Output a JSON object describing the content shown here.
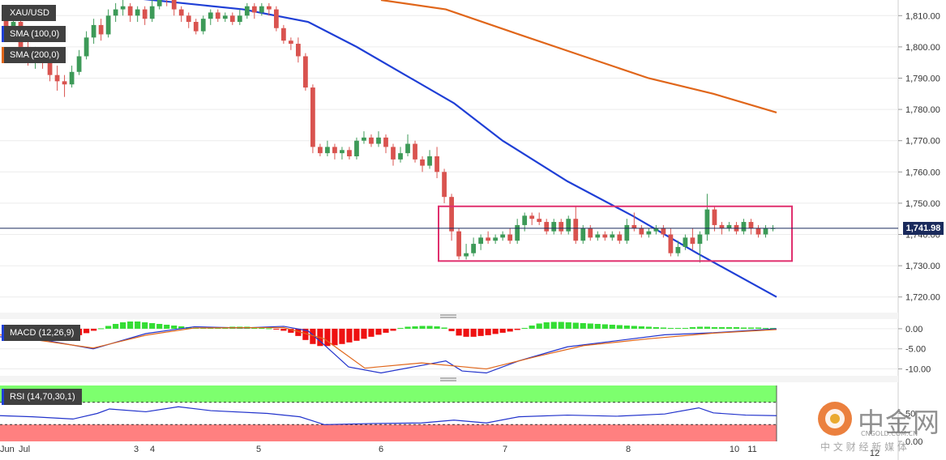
{
  "chart_data": [
    {
      "type": "candlestick",
      "symbol": "XAU/USD",
      "indicators": [
        {
          "name": "SMA (100,0)",
          "color": "#1f3fd6"
        },
        {
          "name": "SMA (200,0)",
          "color": "#e0661a"
        }
      ],
      "ylim": [
        1715,
        1815
      ],
      "yticks": [
        1720,
        1730,
        1740,
        1750,
        1760,
        1770,
        1780,
        1790,
        1800,
        1810
      ],
      "ytick_labels": [
        "1,720.00",
        "1,730.00",
        "1,740.00",
        "1,750.00",
        "1,760.00",
        "1,770.00",
        "1,780.00",
        "1,790.00",
        "1,800.00",
        "1,810.00"
      ],
      "last_price": 1741.98,
      "last_price_label": "1,741.98",
      "x_labels": [
        "Jun",
        "Jul",
        "3",
        "4",
        "5",
        "6",
        "7",
        "8",
        "10",
        "11",
        "12"
      ],
      "candles": [
        [
          1809,
          1806,
          1811,
          1804
        ],
        [
          1806,
          1808,
          1810,
          1803
        ],
        [
          1808,
          1800,
          1809,
          1798
        ],
        [
          1800,
          1796,
          1802,
          1794
        ],
        [
          1796,
          1798,
          1800,
          1793
        ],
        [
          1798,
          1795,
          1799,
          1793
        ],
        [
          1795,
          1791,
          1798,
          1789
        ],
        [
          1791,
          1789,
          1794,
          1786
        ],
        [
          1789,
          1788,
          1791,
          1784
        ],
        [
          1788,
          1792,
          1794,
          1787
        ],
        [
          1792,
          1797,
          1799,
          1791
        ],
        [
          1797,
          1803,
          1805,
          1796
        ],
        [
          1803,
          1807,
          1809,
          1801
        ],
        [
          1807,
          1804,
          1809,
          1802
        ],
        [
          1804,
          1810,
          1812,
          1803
        ],
        [
          1810,
          1812,
          1814,
          1808
        ],
        [
          1812,
          1813,
          1815,
          1810
        ],
        [
          1813,
          1810,
          1814,
          1808
        ],
        [
          1810,
          1812,
          1813,
          1808
        ],
        [
          1812,
          1809,
          1813,
          1807
        ],
        [
          1809,
          1813,
          1815,
          1808
        ],
        [
          1813,
          1816,
          1817,
          1812
        ],
        [
          1816,
          1815,
          1817,
          1813
        ],
        [
          1815,
          1812,
          1816,
          1810
        ],
        [
          1812,
          1810,
          1813,
          1808
        ],
        [
          1810,
          1808,
          1811,
          1806
        ],
        [
          1808,
          1805,
          1809,
          1804
        ],
        [
          1805,
          1809,
          1810,
          1804
        ],
        [
          1809,
          1811,
          1812,
          1807
        ],
        [
          1811,
          1809,
          1812,
          1808
        ],
        [
          1809,
          1810,
          1811,
          1808
        ],
        [
          1810,
          1808,
          1811,
          1807
        ],
        [
          1808,
          1810,
          1812,
          1807
        ],
        [
          1810,
          1813,
          1814,
          1809
        ],
        [
          1813,
          1811,
          1814,
          1809
        ],
        [
          1811,
          1813,
          1814,
          1810
        ],
        [
          1813,
          1812,
          1814,
          1810
        ],
        [
          1812,
          1806,
          1813,
          1805
        ],
        [
          1806,
          1802,
          1807,
          1801
        ],
        [
          1802,
          1801,
          1803,
          1799
        ],
        [
          1801,
          1797,
          1803,
          1795
        ],
        [
          1797,
          1787,
          1798,
          1786
        ],
        [
          1787,
          1768,
          1788,
          1766
        ],
        [
          1768,
          1766,
          1769,
          1765
        ],
        [
          1766,
          1768,
          1770,
          1765
        ],
        [
          1768,
          1766,
          1769,
          1764
        ],
        [
          1766,
          1767,
          1768,
          1764
        ],
        [
          1767,
          1765,
          1768,
          1764
        ],
        [
          1765,
          1770,
          1771,
          1764
        ],
        [
          1770,
          1771,
          1773,
          1769
        ],
        [
          1771,
          1769,
          1772,
          1768
        ],
        [
          1769,
          1771,
          1773,
          1768
        ],
        [
          1771,
          1768,
          1772,
          1766
        ],
        [
          1768,
          1764,
          1769,
          1762
        ],
        [
          1764,
          1766,
          1768,
          1763
        ],
        [
          1766,
          1769,
          1772,
          1765
        ],
        [
          1769,
          1764,
          1770,
          1763
        ],
        [
          1764,
          1762,
          1765,
          1760
        ],
        [
          1762,
          1765,
          1767,
          1761
        ],
        [
          1765,
          1760,
          1768,
          1758
        ],
        [
          1760,
          1752,
          1761,
          1750
        ],
        [
          1752,
          1741,
          1753,
          1738
        ],
        [
          1741,
          1733,
          1742,
          1732
        ],
        [
          1733,
          1734,
          1737,
          1732
        ],
        [
          1734,
          1737,
          1739,
          1733
        ],
        [
          1737,
          1739,
          1740,
          1735
        ],
        [
          1739,
          1738,
          1741,
          1737
        ],
        [
          1738,
          1739,
          1740,
          1737
        ],
        [
          1739,
          1740,
          1741,
          1738
        ],
        [
          1740,
          1738,
          1742,
          1737
        ],
        [
          1738,
          1743,
          1745,
          1737
        ],
        [
          1743,
          1746,
          1747,
          1741
        ],
        [
          1746,
          1745,
          1747,
          1743
        ],
        [
          1745,
          1744,
          1747,
          1743
        ],
        [
          1744,
          1741,
          1745,
          1740
        ],
        [
          1741,
          1744,
          1745,
          1740
        ],
        [
          1744,
          1741,
          1745,
          1740
        ],
        [
          1741,
          1745,
          1746,
          1740
        ],
        [
          1745,
          1738,
          1749,
          1737
        ],
        [
          1738,
          1742,
          1743,
          1737
        ],
        [
          1742,
          1739,
          1743,
          1738
        ],
        [
          1739,
          1740,
          1741,
          1738
        ],
        [
          1740,
          1739,
          1741,
          1738
        ],
        [
          1739,
          1740,
          1741,
          1738
        ],
        [
          1740,
          1738,
          1741,
          1737
        ],
        [
          1738,
          1743,
          1745,
          1737
        ],
        [
          1743,
          1742,
          1747,
          1741
        ],
        [
          1742,
          1740,
          1743,
          1739
        ],
        [
          1740,
          1741,
          1742,
          1739
        ],
        [
          1741,
          1742,
          1743,
          1740
        ],
        [
          1742,
          1740,
          1743,
          1739
        ],
        [
          1740,
          1734,
          1742,
          1733
        ],
        [
          1734,
          1736,
          1738,
          1733
        ],
        [
          1736,
          1739,
          1740,
          1735
        ],
        [
          1739,
          1737,
          1742,
          1735
        ],
        [
          1737,
          1740,
          1741,
          1731
        ],
        [
          1740,
          1748,
          1753,
          1738
        ],
        [
          1748,
          1743,
          1749,
          1741
        ],
        [
          1743,
          1742,
          1744,
          1740
        ],
        [
          1742,
          1743,
          1744,
          1741
        ],
        [
          1743,
          1741,
          1744,
          1740
        ],
        [
          1741,
          1744,
          1745,
          1740
        ],
        [
          1744,
          1742,
          1745,
          1740
        ],
        [
          1742,
          1740,
          1743,
          1739
        ],
        [
          1740,
          1742,
          1743,
          1739
        ],
        [
          1742,
          1742,
          1743,
          1741
        ]
      ],
      "sma100": [
        [
          0,
          1820
        ],
        [
          300,
          1812
        ],
        [
          380,
          1808
        ],
        [
          440,
          1800
        ],
        [
          500,
          1791
        ],
        [
          560,
          1782
        ],
        [
          620,
          1770
        ],
        [
          700,
          1757
        ],
        [
          780,
          1746
        ],
        [
          860,
          1734
        ],
        [
          958,
          1720
        ]
      ],
      "sma200": [
        [
          470,
          1815
        ],
        [
          550,
          1812
        ],
        [
          640,
          1804
        ],
        [
          720,
          1797
        ],
        [
          800,
          1790
        ],
        [
          880,
          1785
        ],
        [
          958,
          1779
        ]
      ],
      "range_box": {
        "high": 1749,
        "low": 1731.5,
        "color": "#e0306e"
      }
    },
    {
      "type": "bar+line",
      "name": "MACD (12,26,9)",
      "ylim": [
        -11.5,
        2
      ],
      "yticks": [
        0,
        -5,
        -10
      ],
      "ytick_labels": [
        "0.00",
        "-5.00",
        "-10.00"
      ],
      "histogram": [
        -1.5,
        -1.8,
        -2.0,
        -2.2,
        -2.4,
        -2.6,
        -2.6,
        -2.5,
        -2.3,
        -2.0,
        -1.6,
        -1.1,
        -0.5,
        0.1,
        0.7,
        1.2,
        1.6,
        1.8,
        1.8,
        1.6,
        1.4,
        1.2,
        1.0,
        0.8,
        0.6,
        0.4,
        0.3,
        0.2,
        0.2,
        0.3,
        0.4,
        0.5,
        0.5,
        0.5,
        0.4,
        0.3,
        0.1,
        -0.2,
        -0.5,
        -1.0,
        -1.8,
        -2.8,
        -3.8,
        -4.3,
        -4.3,
        -4.1,
        -3.8,
        -3.4,
        -3.0,
        -2.5,
        -2.0,
        -1.5,
        -1.0,
        -0.5,
        0.2,
        0.5,
        0.6,
        0.7,
        0.7,
        0.6,
        0.3,
        -0.6,
        -1.7,
        -2.0,
        -2.0,
        -1.8,
        -1.6,
        -1.3,
        -1.0,
        -0.7,
        -0.3,
        0.2,
        0.8,
        1.3,
        1.6,
        1.7,
        1.7,
        1.6,
        1.5,
        1.4,
        1.3,
        1.2,
        1.1,
        1.0,
        0.9,
        0.8,
        0.7,
        0.6,
        0.5,
        0.4,
        0.3,
        0.2,
        0.2,
        0.2,
        0.4,
        0.5,
        0.5,
        0.4,
        0.4,
        0.4,
        0.4,
        0.3,
        0.3,
        0.3,
        0.2,
        0.2
      ],
      "macd_line": [
        [
          0,
          -2
        ],
        [
          60,
          -3
        ],
        [
          115,
          -5
        ],
        [
          180,
          -1.2
        ],
        [
          240,
          0.5
        ],
        [
          300,
          0.2
        ],
        [
          350,
          0.6
        ],
        [
          380,
          -0.5
        ],
        [
          400,
          -4
        ],
        [
          430,
          -9.5
        ],
        [
          470,
          -11
        ],
        [
          510,
          -9.5
        ],
        [
          550,
          -8
        ],
        [
          570,
          -10.5
        ],
        [
          600,
          -11
        ],
        [
          640,
          -8
        ],
        [
          700,
          -4.5
        ],
        [
          760,
          -3
        ],
        [
          820,
          -1.5
        ],
        [
          880,
          -1
        ],
        [
          958,
          0
        ]
      ],
      "signal_line": [
        [
          0,
          -1.5
        ],
        [
          115,
          -4.8
        ],
        [
          180,
          -1.6
        ],
        [
          240,
          0.2
        ],
        [
          350,
          0.3
        ],
        [
          400,
          -2.5
        ],
        [
          450,
          -9.8
        ],
        [
          520,
          -8.5
        ],
        [
          600,
          -10
        ],
        [
          660,
          -7
        ],
        [
          720,
          -4.2
        ],
        [
          800,
          -2.5
        ],
        [
          880,
          -1.1
        ],
        [
          958,
          -0.2
        ]
      ]
    },
    {
      "type": "line",
      "name": "RSI (14,70,30,1)",
      "ylim": [
        0,
        100
      ],
      "yticks": [
        50,
        0
      ],
      "ytick_labels": [
        "50",
        "0.00"
      ],
      "overbought": 70,
      "oversold": 30,
      "rsi": [
        [
          0,
          46
        ],
        [
          40,
          44
        ],
        [
          90,
          40
        ],
        [
          120,
          50
        ],
        [
          135,
          58
        ],
        [
          180,
          53
        ],
        [
          220,
          62
        ],
        [
          260,
          55
        ],
        [
          330,
          50
        ],
        [
          370,
          44
        ],
        [
          400,
          30
        ],
        [
          460,
          32
        ],
        [
          520,
          33
        ],
        [
          560,
          38
        ],
        [
          600,
          33
        ],
        [
          640,
          44
        ],
        [
          700,
          47
        ],
        [
          760,
          45
        ],
        [
          820,
          49
        ],
        [
          862,
          60
        ],
        [
          880,
          51
        ],
        [
          920,
          47
        ],
        [
          958,
          46
        ]
      ]
    }
  ],
  "watermark": {
    "name": "中金网",
    "site": "CNGOLD.COM.CN",
    "tagline": "中 文 财 经 新 媒 体"
  }
}
